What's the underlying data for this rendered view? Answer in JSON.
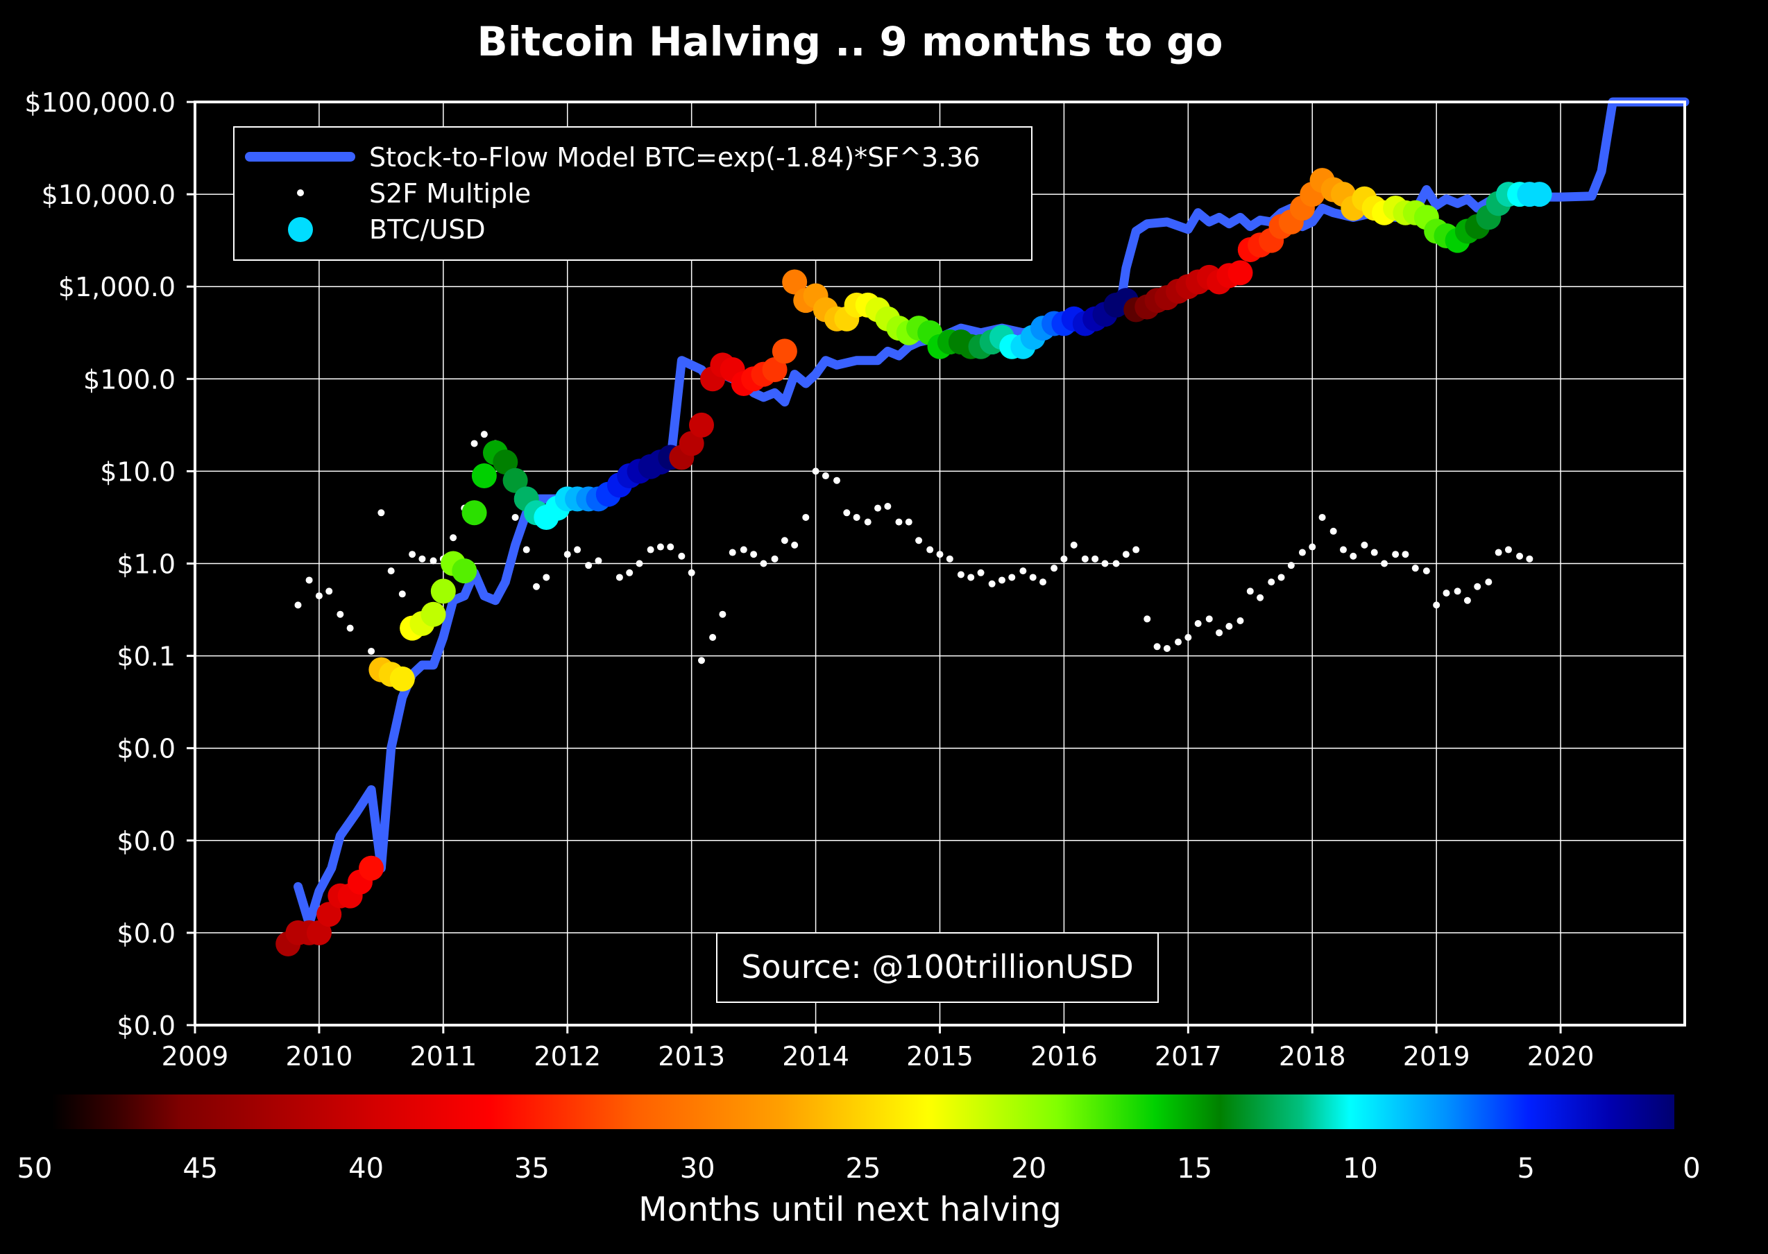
{
  "chart_data": {
    "type": "scatter",
    "title": "Bitcoin Halving .. 9 months to go",
    "xlim": [
      2009,
      2021
    ],
    "x_ticks": [
      2009,
      2010,
      2011,
      2012,
      2013,
      2014,
      2015,
      2016,
      2017,
      2018,
      2019,
      2020
    ],
    "ylim_log10": [
      -5,
      5
    ],
    "y_ticks": [
      {
        "log10": 5,
        "label": "$100,000.0"
      },
      {
        "log10": 4,
        "label": "$10,000.0"
      },
      {
        "log10": 3,
        "label": "$1,000.0"
      },
      {
        "log10": 2,
        "label": "$100.0"
      },
      {
        "log10": 1,
        "label": "$10.0"
      },
      {
        "log10": 0,
        "label": "$1.0"
      },
      {
        "log10": -1,
        "label": "$0.1"
      },
      {
        "log10": -2,
        "label": "$0.0"
      },
      {
        "log10": -3,
        "label": "$0.0"
      },
      {
        "log10": -4,
        "label": "$0.0"
      }
    ],
    "y_scale": "log",
    "grid": true,
    "legend_position": "top-left",
    "legend": {
      "model_label": "Stock-to-Flow Model BTC=exp(-1.84)*SF^3.36",
      "multiple_label": "S2F Multiple",
      "btc_label": "BTC/USD"
    },
    "annotation": "Source: @100trillionUSD",
    "colorbar": {
      "label": "Months until next halving",
      "range": [
        50,
        0
      ],
      "ticks": [
        "50",
        "45",
        "40",
        "35",
        "30",
        "25",
        "20",
        "15",
        "10",
        "5",
        "0"
      ]
    },
    "colors": {
      "background": "#000000",
      "model_line": "#3a62ff",
      "multiple_dots": "#ffffff",
      "grid": "#ffffff",
      "text": "#ffffff"
    },
    "model_series": [
      [
        2009.83,
        -3.5
      ],
      [
        2009.92,
        -3.9
      ],
      [
        2010.0,
        -3.55
      ],
      [
        2010.1,
        -3.3
      ],
      [
        2010.17,
        -2.95
      ],
      [
        2010.3,
        -2.7
      ],
      [
        2010.42,
        -2.45
      ],
      [
        2010.5,
        -3.3
      ],
      [
        2010.58,
        -2.0
      ],
      [
        2010.67,
        -1.45
      ],
      [
        2010.75,
        -1.2
      ],
      [
        2010.83,
        -1.1
      ],
      [
        2010.92,
        -1.1
      ],
      [
        2011.0,
        -0.8
      ],
      [
        2011.08,
        -0.4
      ],
      [
        2011.17,
        -0.35
      ],
      [
        2011.25,
        -0.1
      ],
      [
        2011.33,
        -0.35
      ],
      [
        2011.42,
        -0.4
      ],
      [
        2011.5,
        -0.2
      ],
      [
        2011.58,
        0.2
      ],
      [
        2011.67,
        0.55
      ],
      [
        2011.75,
        0.7
      ],
      [
        2011.83,
        0.7
      ],
      [
        2011.92,
        0.7
      ],
      [
        2012.0,
        0.75
      ],
      [
        2012.17,
        0.7
      ],
      [
        2012.33,
        0.75
      ],
      [
        2012.5,
        0.9
      ],
      [
        2012.67,
        1.05
      ],
      [
        2012.83,
        1.1
      ],
      [
        2012.92,
        2.2
      ],
      [
        2013.0,
        2.15
      ],
      [
        2013.08,
        2.1
      ],
      [
        2013.17,
        1.95
      ],
      [
        2013.25,
        2.05
      ],
      [
        2013.33,
        2.0
      ],
      [
        2013.42,
        1.95
      ],
      [
        2013.5,
        1.85
      ],
      [
        2013.58,
        1.8
      ],
      [
        2013.67,
        1.85
      ],
      [
        2013.75,
        1.75
      ],
      [
        2013.83,
        2.05
      ],
      [
        2013.92,
        1.95
      ],
      [
        2014.0,
        2.05
      ],
      [
        2014.08,
        2.2
      ],
      [
        2014.17,
        2.15
      ],
      [
        2014.33,
        2.2
      ],
      [
        2014.5,
        2.2
      ],
      [
        2014.58,
        2.3
      ],
      [
        2014.67,
        2.25
      ],
      [
        2014.75,
        2.35
      ],
      [
        2014.83,
        2.4
      ],
      [
        2015.0,
        2.45
      ],
      [
        2015.17,
        2.55
      ],
      [
        2015.33,
        2.5
      ],
      [
        2015.5,
        2.55
      ],
      [
        2015.67,
        2.5
      ],
      [
        2015.83,
        2.55
      ],
      [
        2016.0,
        2.6
      ],
      [
        2016.17,
        2.65
      ],
      [
        2016.33,
        2.7
      ],
      [
        2016.45,
        2.75
      ],
      [
        2016.5,
        3.2
      ],
      [
        2016.58,
        3.6
      ],
      [
        2016.67,
        3.68
      ],
      [
        2016.83,
        3.7
      ],
      [
        2017.0,
        3.62
      ],
      [
        2017.08,
        3.8
      ],
      [
        2017.17,
        3.7
      ],
      [
        2017.25,
        3.75
      ],
      [
        2017.33,
        3.68
      ],
      [
        2017.42,
        3.75
      ],
      [
        2017.5,
        3.65
      ],
      [
        2017.58,
        3.72
      ],
      [
        2017.67,
        3.7
      ],
      [
        2017.75,
        3.8
      ],
      [
        2017.83,
        3.85
      ],
      [
        2017.92,
        3.65
      ],
      [
        2018.0,
        3.7
      ],
      [
        2018.08,
        3.85
      ],
      [
        2018.17,
        3.8
      ],
      [
        2018.33,
        3.75
      ],
      [
        2018.5,
        3.8
      ],
      [
        2018.67,
        3.75
      ],
      [
        2018.83,
        3.82
      ],
      [
        2018.92,
        4.05
      ],
      [
        2019.0,
        3.88
      ],
      [
        2019.08,
        3.95
      ],
      [
        2019.17,
        3.9
      ],
      [
        2019.25,
        3.95
      ],
      [
        2019.33,
        3.85
      ],
      [
        2019.42,
        3.92
      ],
      [
        2019.5,
        3.95
      ],
      [
        2019.67,
        3.97
      ],
      [
        2020.0,
        3.97
      ],
      [
        2020.25,
        3.98
      ],
      [
        2020.33,
        4.25
      ],
      [
        2020.42,
        5.0
      ],
      [
        2021.0,
        5.0
      ]
    ],
    "btc_usd": [
      [
        2009.75,
        -4.12,
        43
      ],
      [
        2009.83,
        -4.0,
        42
      ],
      [
        2009.92,
        -4.0,
        42
      ],
      [
        2010.0,
        -4.0,
        41
      ],
      [
        2010.08,
        -3.8,
        40
      ],
      [
        2010.17,
        -3.6,
        39
      ],
      [
        2010.25,
        -3.6,
        38
      ],
      [
        2010.33,
        -3.45,
        37
      ],
      [
        2010.42,
        -3.3,
        36
      ],
      [
        2010.5,
        -1.15,
        26
      ],
      [
        2010.58,
        -1.2,
        25
      ],
      [
        2010.67,
        -1.25,
        24
      ],
      [
        2010.75,
        -0.7,
        23
      ],
      [
        2010.83,
        -0.65,
        22
      ],
      [
        2010.92,
        -0.55,
        21
      ],
      [
        2011.0,
        -0.3,
        20
      ],
      [
        2011.08,
        0.0,
        19
      ],
      [
        2011.17,
        -0.08,
        18
      ],
      [
        2011.25,
        0.55,
        17
      ],
      [
        2011.33,
        0.95,
        16
      ],
      [
        2011.42,
        1.2,
        15
      ],
      [
        2011.5,
        1.1,
        14
      ],
      [
        2011.58,
        0.9,
        13
      ],
      [
        2011.67,
        0.7,
        12
      ],
      [
        2011.75,
        0.55,
        11
      ],
      [
        2011.83,
        0.5,
        10
      ],
      [
        2011.92,
        0.6,
        10
      ],
      [
        2012.0,
        0.7,
        9
      ],
      [
        2012.08,
        0.7,
        8
      ],
      [
        2012.17,
        0.7,
        7
      ],
      [
        2012.25,
        0.7,
        6
      ],
      [
        2012.33,
        0.75,
        5
      ],
      [
        2012.42,
        0.85,
        4
      ],
      [
        2012.5,
        0.95,
        3
      ],
      [
        2012.58,
        1.0,
        2
      ],
      [
        2012.67,
        1.05,
        1
      ],
      [
        2012.75,
        1.1,
        1
      ],
      [
        2012.83,
        1.15,
        0
      ],
      [
        2012.92,
        1.15,
        43
      ],
      [
        2013.0,
        1.3,
        42
      ],
      [
        2013.08,
        1.5,
        41
      ],
      [
        2013.17,
        2.0,
        40
      ],
      [
        2013.25,
        2.15,
        39
      ],
      [
        2013.33,
        2.1,
        38
      ],
      [
        2013.42,
        1.95,
        37
      ],
      [
        2013.5,
        2.0,
        36
      ],
      [
        2013.58,
        2.05,
        35
      ],
      [
        2013.67,
        2.1,
        34
      ],
      [
        2013.75,
        2.3,
        33
      ],
      [
        2013.83,
        3.05,
        30
      ],
      [
        2013.92,
        2.85,
        29
      ],
      [
        2014.0,
        2.9,
        28
      ],
      [
        2014.08,
        2.75,
        27
      ],
      [
        2014.17,
        2.65,
        26
      ],
      [
        2014.25,
        2.65,
        25
      ],
      [
        2014.33,
        2.8,
        24
      ],
      [
        2014.42,
        2.8,
        23
      ],
      [
        2014.5,
        2.75,
        22
      ],
      [
        2014.58,
        2.65,
        21
      ],
      [
        2014.67,
        2.55,
        20
      ],
      [
        2014.75,
        2.5,
        19
      ],
      [
        2014.83,
        2.55,
        18
      ],
      [
        2014.92,
        2.5,
        17
      ],
      [
        2015.0,
        2.35,
        16
      ],
      [
        2015.08,
        2.4,
        15
      ],
      [
        2015.17,
        2.4,
        14
      ],
      [
        2015.25,
        2.35,
        14
      ],
      [
        2015.33,
        2.35,
        13
      ],
      [
        2015.42,
        2.4,
        12
      ],
      [
        2015.5,
        2.45,
        11
      ],
      [
        2015.58,
        2.35,
        10
      ],
      [
        2015.67,
        2.35,
        9
      ],
      [
        2015.75,
        2.45,
        8
      ],
      [
        2015.83,
        2.55,
        7
      ],
      [
        2015.92,
        2.6,
        6
      ],
      [
        2016.0,
        2.6,
        5
      ],
      [
        2016.08,
        2.65,
        4
      ],
      [
        2016.17,
        2.6,
        3
      ],
      [
        2016.25,
        2.65,
        2
      ],
      [
        2016.33,
        2.7,
        1
      ],
      [
        2016.42,
        2.8,
        0
      ],
      [
        2016.5,
        2.85,
        0
      ],
      [
        2016.58,
        2.75,
        47
      ],
      [
        2016.67,
        2.78,
        46
      ],
      [
        2016.75,
        2.85,
        45
      ],
      [
        2016.83,
        2.88,
        44
      ],
      [
        2016.92,
        2.95,
        43
      ],
      [
        2017.0,
        3.0,
        42
      ],
      [
        2017.08,
        3.05,
        41
      ],
      [
        2017.17,
        3.1,
        40
      ],
      [
        2017.25,
        3.05,
        39
      ],
      [
        2017.33,
        3.12,
        38
      ],
      [
        2017.42,
        3.15,
        37
      ],
      [
        2017.5,
        3.4,
        36
      ],
      [
        2017.58,
        3.45,
        35
      ],
      [
        2017.67,
        3.5,
        34
      ],
      [
        2017.75,
        3.65,
        33
      ],
      [
        2017.83,
        3.7,
        32
      ],
      [
        2017.92,
        3.85,
        31
      ],
      [
        2018.0,
        4.0,
        30
      ],
      [
        2018.08,
        4.15,
        29
      ],
      [
        2018.17,
        4.05,
        28
      ],
      [
        2018.25,
        4.0,
        27
      ],
      [
        2018.33,
        3.85,
        26
      ],
      [
        2018.42,
        3.95,
        25
      ],
      [
        2018.5,
        3.85,
        24
      ],
      [
        2018.58,
        3.8,
        23
      ],
      [
        2018.67,
        3.85,
        22
      ],
      [
        2018.75,
        3.8,
        21
      ],
      [
        2018.83,
        3.8,
        20
      ],
      [
        2018.92,
        3.75,
        19
      ],
      [
        2019.0,
        3.6,
        18
      ],
      [
        2019.08,
        3.55,
        17
      ],
      [
        2019.17,
        3.5,
        16
      ],
      [
        2019.25,
        3.6,
        15
      ],
      [
        2019.33,
        3.65,
        14
      ],
      [
        2019.42,
        3.75,
        13
      ],
      [
        2019.5,
        3.9,
        12
      ],
      [
        2019.58,
        4.0,
        11
      ],
      [
        2019.67,
        4.0,
        10
      ],
      [
        2019.75,
        4.0,
        9
      ],
      [
        2019.83,
        4.0,
        9
      ]
    ],
    "s2f_multiple": [
      [
        2009.83,
        -0.45
      ],
      [
        2009.92,
        -0.18
      ],
      [
        2010.0,
        -0.35
      ],
      [
        2010.08,
        -0.3
      ],
      [
        2010.17,
        -0.55
      ],
      [
        2010.25,
        -0.7
      ],
      [
        2010.42,
        -0.95
      ],
      [
        2010.5,
        0.55
      ],
      [
        2010.58,
        -0.08
      ],
      [
        2010.67,
        -0.33
      ],
      [
        2010.75,
        0.1
      ],
      [
        2010.83,
        0.05
      ],
      [
        2010.92,
        0.03
      ],
      [
        2011.0,
        0.05
      ],
      [
        2011.08,
        0.28
      ],
      [
        2011.17,
        0.6
      ],
      [
        2011.25,
        1.3
      ],
      [
        2011.33,
        1.4
      ],
      [
        2011.42,
        1.3
      ],
      [
        2011.58,
        0.5
      ],
      [
        2011.67,
        0.15
      ],
      [
        2011.75,
        -0.25
      ],
      [
        2011.83,
        -0.15
      ],
      [
        2012.0,
        0.1
      ],
      [
        2012.08,
        0.15
      ],
      [
        2012.17,
        -0.02
      ],
      [
        2012.25,
        0.03
      ],
      [
        2012.42,
        -0.15
      ],
      [
        2012.5,
        -0.1
      ],
      [
        2012.58,
        0.0
      ],
      [
        2012.67,
        0.15
      ],
      [
        2012.75,
        0.18
      ],
      [
        2012.83,
        0.18
      ],
      [
        2012.92,
        0.08
      ],
      [
        2013.0,
        -0.1
      ],
      [
        2013.08,
        -1.05
      ],
      [
        2013.17,
        -0.8
      ],
      [
        2013.25,
        -0.55
      ],
      [
        2013.33,
        0.12
      ],
      [
        2013.42,
        0.15
      ],
      [
        2013.5,
        0.1
      ],
      [
        2013.58,
        0.0
      ],
      [
        2013.67,
        0.05
      ],
      [
        2013.75,
        0.25
      ],
      [
        2013.83,
        0.2
      ],
      [
        2013.92,
        0.5
      ],
      [
        2014.0,
        1.0
      ],
      [
        2014.08,
        0.95
      ],
      [
        2014.17,
        0.9
      ],
      [
        2014.25,
        0.55
      ],
      [
        2014.33,
        0.5
      ],
      [
        2014.42,
        0.45
      ],
      [
        2014.5,
        0.6
      ],
      [
        2014.58,
        0.62
      ],
      [
        2014.67,
        0.45
      ],
      [
        2014.75,
        0.45
      ],
      [
        2014.83,
        0.25
      ],
      [
        2014.92,
        0.15
      ],
      [
        2015.0,
        0.1
      ],
      [
        2015.08,
        0.05
      ],
      [
        2015.17,
        -0.12
      ],
      [
        2015.25,
        -0.15
      ],
      [
        2015.33,
        -0.1
      ],
      [
        2015.42,
        -0.22
      ],
      [
        2015.5,
        -0.18
      ],
      [
        2015.58,
        -0.15
      ],
      [
        2015.67,
        -0.08
      ],
      [
        2015.75,
        -0.15
      ],
      [
        2015.83,
        -0.2
      ],
      [
        2015.92,
        -0.05
      ],
      [
        2016.0,
        0.05
      ],
      [
        2016.08,
        0.2
      ],
      [
        2016.17,
        0.05
      ],
      [
        2016.25,
        0.05
      ],
      [
        2016.33,
        0.0
      ],
      [
        2016.42,
        0.0
      ],
      [
        2016.5,
        0.1
      ],
      [
        2016.58,
        0.15
      ],
      [
        2016.67,
        -0.6
      ],
      [
        2016.75,
        -0.9
      ],
      [
        2016.83,
        -0.92
      ],
      [
        2016.92,
        -0.85
      ],
      [
        2017.0,
        -0.8
      ],
      [
        2017.08,
        -0.65
      ],
      [
        2017.17,
        -0.6
      ],
      [
        2017.25,
        -0.75
      ],
      [
        2017.33,
        -0.68
      ],
      [
        2017.42,
        -0.62
      ],
      [
        2017.5,
        -0.3
      ],
      [
        2017.58,
        -0.37
      ],
      [
        2017.67,
        -0.2
      ],
      [
        2017.75,
        -0.15
      ],
      [
        2017.83,
        -0.02
      ],
      [
        2017.92,
        0.12
      ],
      [
        2018.0,
        0.18
      ],
      [
        2018.08,
        0.5
      ],
      [
        2018.17,
        0.35
      ],
      [
        2018.25,
        0.15
      ],
      [
        2018.33,
        0.08
      ],
      [
        2018.42,
        0.2
      ],
      [
        2018.5,
        0.12
      ],
      [
        2018.58,
        0.0
      ],
      [
        2018.67,
        0.1
      ],
      [
        2018.75,
        0.1
      ],
      [
        2018.83,
        -0.05
      ],
      [
        2018.92,
        -0.08
      ],
      [
        2019.0,
        -0.45
      ],
      [
        2019.08,
        -0.32
      ],
      [
        2019.17,
        -0.3
      ],
      [
        2019.25,
        -0.4
      ],
      [
        2019.33,
        -0.25
      ],
      [
        2019.42,
        -0.2
      ],
      [
        2019.5,
        0.12
      ],
      [
        2019.58,
        0.15
      ],
      [
        2019.67,
        0.08
      ],
      [
        2019.75,
        0.05
      ]
    ]
  }
}
